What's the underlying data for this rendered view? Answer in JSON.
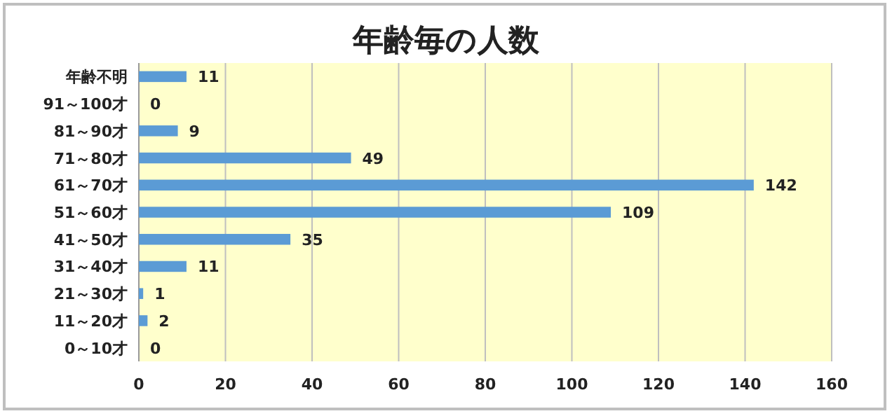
{
  "chart_data": {
    "type": "bar",
    "orientation": "horizontal",
    "title": "年齢毎の人数",
    "categories": [
      "年齢不明",
      "91～100才",
      "81～90才",
      "71～80才",
      "61～70才",
      "51～60才",
      "41～50才",
      "31～40才",
      "21～30才",
      "11～20才",
      "0～10才"
    ],
    "values": [
      11,
      0,
      9,
      49,
      142,
      109,
      35,
      11,
      1,
      2,
      0
    ],
    "color": "#5b9bd5",
    "xlim": [
      0,
      160
    ],
    "xticks": [
      0,
      20,
      40,
      60,
      80,
      100,
      120,
      140,
      160
    ],
    "grid": "x",
    "data_labels": true
  }
}
